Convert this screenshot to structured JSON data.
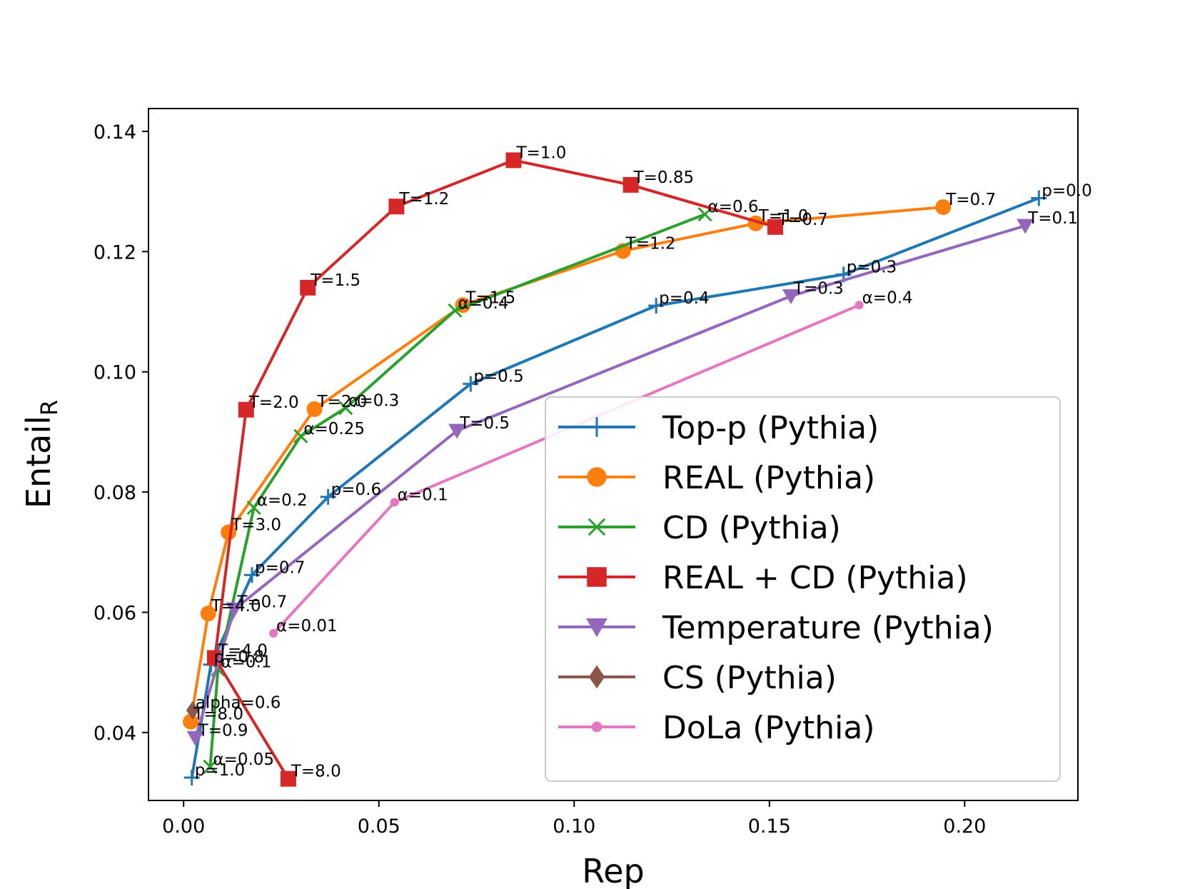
{
  "chart_data": {
    "type": "line",
    "xlabel": "Rep",
    "ylabel": "Entail",
    "ylabel_sub": "R",
    "xlim": [
      -0.009,
      0.229
    ],
    "ylim": [
      0.0287,
      0.1438
    ],
    "xticks": [
      0.0,
      0.05,
      0.1,
      0.15,
      0.2
    ],
    "xtick_labels": [
      "0.00",
      "0.05",
      "0.10",
      "0.15",
      "0.20"
    ],
    "yticks": [
      0.04,
      0.06,
      0.08,
      0.1,
      0.12,
      0.14
    ],
    "ytick_labels": [
      "0.04",
      "0.06",
      "0.08",
      "0.10",
      "0.12",
      "0.14"
    ],
    "grid": false,
    "legend_position": "lower-right",
    "series": [
      {
        "name": "Top-p (Pythia)",
        "color": "#1f77b4",
        "marker": "plus",
        "points": [
          {
            "x": 0.0021,
            "y": 0.0325,
            "label": "p=1.0"
          },
          {
            "x": 0.007,
            "y": 0.0513,
            "label": "p=0.8"
          },
          {
            "x": 0.0175,
            "y": 0.0662,
            "label": "p=0.7"
          },
          {
            "x": 0.037,
            "y": 0.0792,
            "label": "p=0.6"
          },
          {
            "x": 0.0735,
            "y": 0.098,
            "label": "p=0.5"
          },
          {
            "x": 0.121,
            "y": 0.111,
            "label": "p=0.4"
          },
          {
            "x": 0.169,
            "y": 0.1162,
            "label": "p=0.3"
          },
          {
            "x": 0.219,
            "y": 0.1289,
            "label": "p=0.0"
          }
        ]
      },
      {
        "name": "REAL (Pythia)",
        "color": "#ff7f0e",
        "marker": "circle",
        "points": [
          {
            "x": 0.0018,
            "y": 0.0418,
            "label": "T=8.0"
          },
          {
            "x": 0.0063,
            "y": 0.0598,
            "label": "T=4.0"
          },
          {
            "x": 0.0115,
            "y": 0.0733,
            "label": "T=3.0"
          },
          {
            "x": 0.0335,
            "y": 0.0938,
            "label": "T=2.0"
          },
          {
            "x": 0.0715,
            "y": 0.1111,
            "label": "T=1.5"
          },
          {
            "x": 0.1125,
            "y": 0.1201,
            "label": "T=1.2"
          },
          {
            "x": 0.1465,
            "y": 0.1247,
            "label": "T=1.0"
          },
          {
            "x": 0.1945,
            "y": 0.1274,
            "label": "T=0.7"
          }
        ]
      },
      {
        "name": "CD (Pythia)",
        "color": "#2ca02c",
        "marker": "x",
        "points": [
          {
            "x": 0.0068,
            "y": 0.0343,
            "label": "α=0.05"
          },
          {
            "x": 0.0088,
            "y": 0.0505,
            "label": "α=0.1"
          },
          {
            "x": 0.018,
            "y": 0.0774,
            "label": "α=0.2"
          },
          {
            "x": 0.03,
            "y": 0.0893,
            "label": "α=0.25"
          },
          {
            "x": 0.0415,
            "y": 0.094,
            "label": "α=0.3"
          },
          {
            "x": 0.0695,
            "y": 0.1102,
            "label": "α=0.4"
          },
          {
            "x": 0.1335,
            "y": 0.1262,
            "label": "α=0.6"
          }
        ]
      },
      {
        "name": "REAL + CD (Pythia)",
        "color": "#d62728",
        "marker": "square",
        "points": [
          {
            "x": 0.0268,
            "y": 0.0323,
            "label": "T=8.0"
          },
          {
            "x": 0.008,
            "y": 0.0524,
            "label": "T=4.0"
          },
          {
            "x": 0.016,
            "y": 0.0937,
            "label": "T=2.0"
          },
          {
            "x": 0.0318,
            "y": 0.114,
            "label": "T=1.5"
          },
          {
            "x": 0.0545,
            "y": 0.1275,
            "label": "T=1.2"
          },
          {
            "x": 0.0845,
            "y": 0.1352,
            "label": "T=1.0"
          },
          {
            "x": 0.1145,
            "y": 0.1311,
            "label": "T=0.85"
          },
          {
            "x": 0.1515,
            "y": 0.1241,
            "label": "T=0.7"
          }
        ]
      },
      {
        "name": "Temperature (Pythia)",
        "color": "#9467bd",
        "marker": "triangle-down",
        "points": [
          {
            "x": 0.003,
            "y": 0.0391,
            "label": "T=0.9"
          },
          {
            "x": 0.013,
            "y": 0.0605,
            "label": "T=0.7"
          },
          {
            "x": 0.07,
            "y": 0.0902,
            "label": "T=0.5"
          },
          {
            "x": 0.1555,
            "y": 0.1126,
            "label": "T=0.3"
          },
          {
            "x": 0.2155,
            "y": 0.1243,
            "label": "T=0.1"
          }
        ]
      },
      {
        "name": "CS (Pythia)",
        "color": "#8c564b",
        "marker": "diamond",
        "points": [
          {
            "x": 0.0023,
            "y": 0.0437,
            "label": "alpha=0.6"
          }
        ]
      },
      {
        "name": "DoLa (Pythia)",
        "color": "#e377c2",
        "marker": "dot",
        "points": [
          {
            "x": 0.023,
            "y": 0.0565,
            "label": "α=0.01"
          },
          {
            "x": 0.054,
            "y": 0.0783,
            "label": "α=0.1"
          },
          {
            "x": 0.173,
            "y": 0.1111,
            "label": "α=0.4"
          }
        ]
      }
    ]
  }
}
